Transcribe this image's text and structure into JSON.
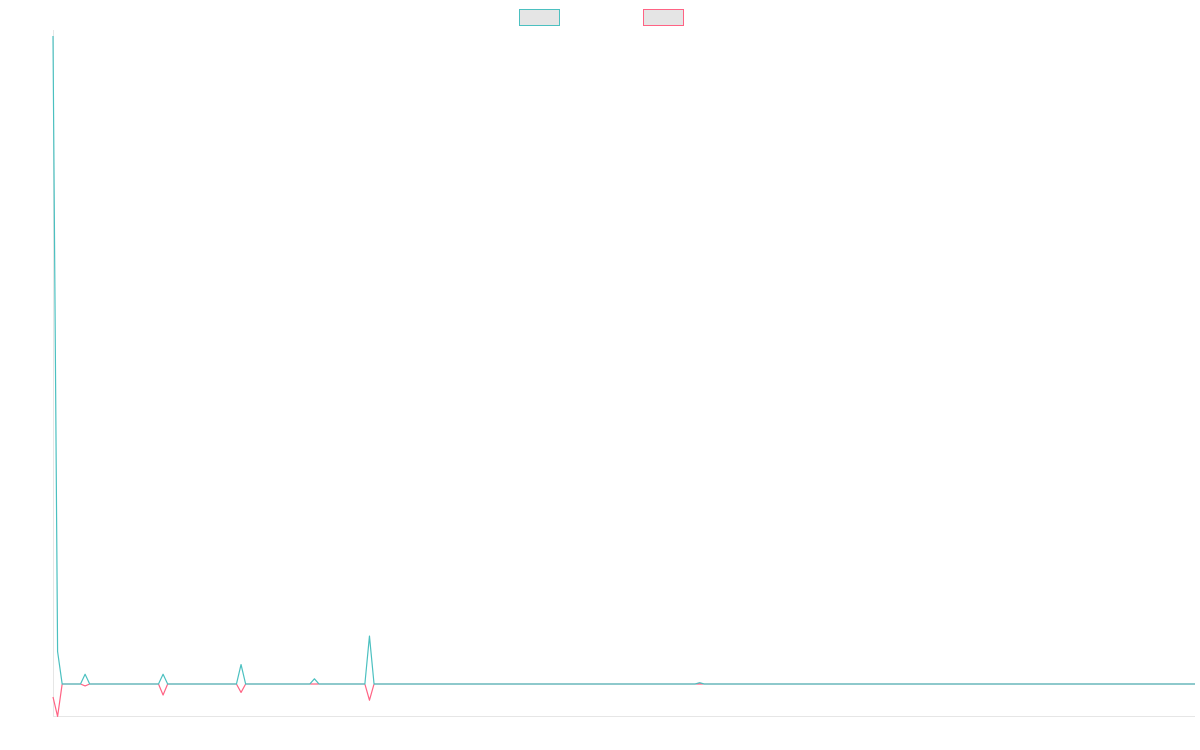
{
  "chart_data": {
    "type": "line",
    "xlim": [
      0,
      249
    ],
    "ylim": [
      -5,
      100
    ],
    "legend": "top",
    "series": [
      {
        "color": "#4bc0c0",
        "x": [
          0,
          1,
          2,
          6,
          7,
          8,
          23,
          24,
          25,
          40,
          41,
          42,
          56,
          57,
          58,
          68,
          69,
          70,
          140,
          141,
          142,
          249
        ],
        "values": [
          100,
          5,
          0,
          0,
          1.5,
          0,
          0,
          1.5,
          0,
          0,
          3,
          0,
          0,
          0.8,
          0,
          0,
          7.4,
          0,
          0,
          0.2,
          0,
          0
        ]
      },
      {
        "color": "#ff6384",
        "x": [
          0,
          1,
          2,
          6,
          7,
          8,
          23,
          24,
          25,
          40,
          41,
          42,
          68,
          69,
          70,
          249
        ],
        "values": [
          -2,
          -5,
          0,
          0,
          -0.3,
          0,
          0,
          -1.7,
          0,
          0,
          -1.3,
          0,
          0,
          -2.5,
          0,
          0
        ]
      }
    ]
  }
}
